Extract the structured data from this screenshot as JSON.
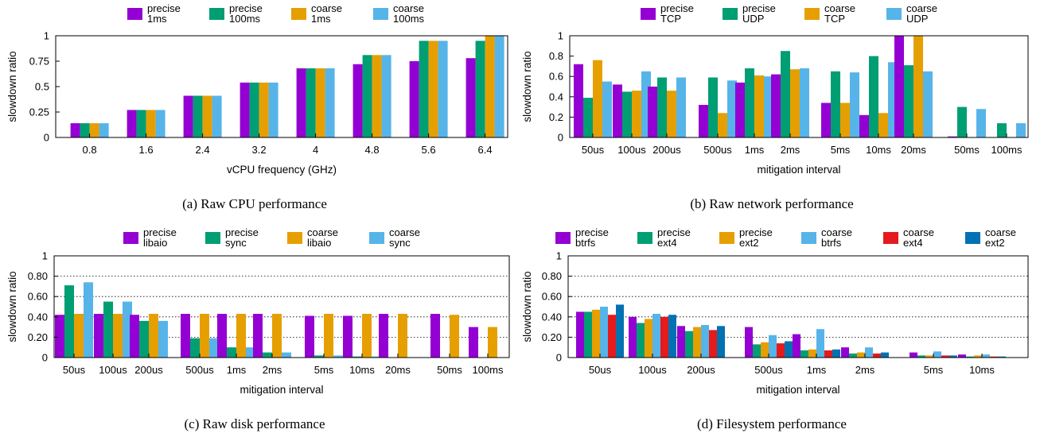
{
  "chart_data": [
    {
      "type": "bar",
      "caption": "(a) Raw CPU performance",
      "xlabel": "vCPU frequency (GHz)",
      "ylabel": "slowdown ratio",
      "ylim": [
        0,
        1
      ],
      "yticks": [
        "0",
        "0.25",
        "0.5",
        "0.75",
        "1"
      ],
      "ytick_values": [
        0,
        0.25,
        0.5,
        0.75,
        1
      ],
      "grid": false,
      "legend_position": "top",
      "categories": [
        "0.8",
        "1.6",
        "2.4",
        "3.2",
        "4",
        "4.8",
        "5.6",
        "6.4"
      ],
      "series": [
        {
          "name": "precise\n1ms",
          "color": "#9400d3",
          "values": [
            0.14,
            0.27,
            0.41,
            0.54,
            0.68,
            0.72,
            0.75,
            0.78
          ]
        },
        {
          "name": "precise\n100ms",
          "color": "#009e73",
          "values": [
            0.14,
            0.27,
            0.41,
            0.54,
            0.68,
            0.81,
            0.95,
            0.95
          ]
        },
        {
          "name": "coarse\n1ms",
          "color": "#e69f00",
          "values": [
            0.14,
            0.27,
            0.41,
            0.54,
            0.68,
            0.81,
            0.95,
            1.0
          ]
        },
        {
          "name": "coarse\n100ms",
          "color": "#56b4e9",
          "values": [
            0.14,
            0.27,
            0.41,
            0.54,
            0.68,
            0.81,
            0.95,
            1.0
          ]
        }
      ]
    },
    {
      "type": "bar",
      "caption": "(b) Raw network performance",
      "xlabel": "mitigation interval",
      "ylabel": "slowdown ratio",
      "ylim": [
        0,
        1
      ],
      "yticks": [
        "0",
        "0.2",
        "0.4",
        "0.6",
        "0.8",
        "1"
      ],
      "ytick_values": [
        0,
        0.2,
        0.4,
        0.6,
        0.8,
        1
      ],
      "grid": false,
      "legend_position": "top",
      "categories": [
        "50us",
        "100us",
        "200us",
        "500us",
        "1ms",
        "2ms",
        "5ms",
        "10ms",
        "20ms",
        "50ms",
        "100ms"
      ],
      "series": [
        {
          "name": "precise\nTCP",
          "color": "#9400d3",
          "values": [
            0.72,
            0.52,
            0.5,
            0.32,
            0.54,
            0.62,
            0.34,
            0.22,
            1.0,
            0.01,
            0.0
          ]
        },
        {
          "name": "precise\nUDP",
          "color": "#009e73",
          "values": [
            0.39,
            0.45,
            0.59,
            0.59,
            0.68,
            0.85,
            0.65,
            0.8,
            0.71,
            0.3,
            0.14
          ]
        },
        {
          "name": "coarse\nTCP",
          "color": "#e69f00",
          "values": [
            0.76,
            0.46,
            0.46,
            0.24,
            0.61,
            0.67,
            0.34,
            0.24,
            1.0,
            0.0,
            0.0
          ]
        },
        {
          "name": "coarse\nUDP",
          "color": "#56b4e9",
          "values": [
            0.55,
            0.65,
            0.59,
            0.56,
            0.6,
            0.68,
            0.64,
            0.74,
            0.65,
            0.28,
            0.14
          ]
        }
      ]
    },
    {
      "type": "bar",
      "caption": "(c) Raw disk performance",
      "xlabel": "mitigation interval",
      "ylabel": "slowdown ratio",
      "ylim": [
        0,
        1
      ],
      "yticks": [
        "0",
        "0.20",
        "0.40",
        "0.60",
        "0.80",
        "1"
      ],
      "ytick_values": [
        0,
        0.2,
        0.4,
        0.6,
        0.8,
        1
      ],
      "grid": true,
      "legend_position": "top",
      "categories": [
        "50us",
        "100us",
        "200us",
        "500us",
        "1ms",
        "2ms",
        "5ms",
        "10ms",
        "20ms",
        "50ms",
        "100ms"
      ],
      "series": [
        {
          "name": "precise\nlibaio",
          "color": "#9400d3",
          "values": [
            0.42,
            0.43,
            0.42,
            0.43,
            0.43,
            0.43,
            0.41,
            0.41,
            0.43,
            0.43,
            0.3
          ]
        },
        {
          "name": "precise\nsync",
          "color": "#009e73",
          "values": [
            0.71,
            0.55,
            0.36,
            0.19,
            0.1,
            0.05,
            0.02,
            0.01,
            0.0,
            0.0,
            0.0
          ]
        },
        {
          "name": "coarse\nlibaio",
          "color": "#e69f00",
          "values": [
            0.43,
            0.43,
            0.43,
            0.43,
            0.43,
            0.43,
            0.43,
            0.43,
            0.43,
            0.42,
            0.3
          ]
        },
        {
          "name": "coarse\nsync",
          "color": "#56b4e9",
          "values": [
            0.74,
            0.55,
            0.36,
            0.19,
            0.1,
            0.05,
            0.02,
            0.01,
            0.0,
            0.0,
            0.0
          ]
        }
      ]
    },
    {
      "type": "bar",
      "caption": "(d) Filesystem performance",
      "xlabel": "mitigation interval",
      "ylabel": "slowdown ratio",
      "ylim": [
        0,
        1
      ],
      "yticks": [
        "0",
        "0.20",
        "0.40",
        "0.60",
        "0.80",
        "1"
      ],
      "ytick_values": [
        0,
        0.2,
        0.4,
        0.6,
        0.8,
        1
      ],
      "grid": true,
      "legend_position": "top",
      "categories": [
        "50us",
        "100us",
        "200us",
        "500us",
        "1ms",
        "2ms",
        "5ms",
        "10ms"
      ],
      "series": [
        {
          "name": "precise\nbtrfs",
          "color": "#9400d3",
          "values": [
            0.45,
            0.4,
            0.31,
            0.3,
            0.23,
            0.1,
            0.05,
            0.03
          ]
        },
        {
          "name": "precise\next4",
          "color": "#009e73",
          "values": [
            0.45,
            0.34,
            0.26,
            0.13,
            0.07,
            0.04,
            0.02,
            0.01
          ]
        },
        {
          "name": "precise\next2",
          "color": "#e69f00",
          "values": [
            0.47,
            0.38,
            0.3,
            0.15,
            0.08,
            0.05,
            0.02,
            0.02
          ]
        },
        {
          "name": "coarse\nbtrfs",
          "color": "#56b4e9",
          "values": [
            0.5,
            0.43,
            0.32,
            0.22,
            0.28,
            0.1,
            0.06,
            0.03
          ]
        },
        {
          "name": "coarse\next4",
          "color": "#e41a1c",
          "values": [
            0.42,
            0.4,
            0.27,
            0.14,
            0.07,
            0.04,
            0.02,
            0.01
          ]
        },
        {
          "name": "coarse\next2",
          "color": "#0072b2",
          "values": [
            0.52,
            0.42,
            0.31,
            0.16,
            0.08,
            0.05,
            0.02,
            0.01
          ]
        }
      ]
    }
  ]
}
